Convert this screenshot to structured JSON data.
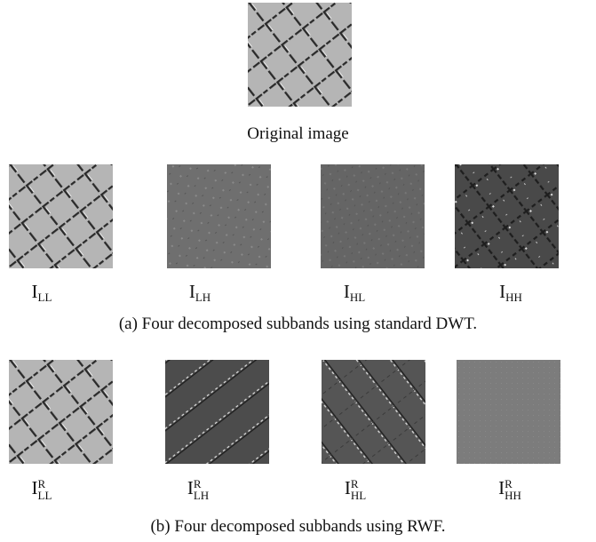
{
  "original": {
    "caption": "Original image"
  },
  "rows": [
    {
      "labels": [
        {
          "base": "I",
          "sub": "LL"
        },
        {
          "base": "I",
          "sub": "LH"
        },
        {
          "base": "I",
          "sub": "HL"
        },
        {
          "base": "I",
          "sub": "HH"
        }
      ],
      "caption": "(a) Four decomposed subbands using standard DWT."
    },
    {
      "labels": [
        {
          "base": "I",
          "sub": "LL",
          "sup": "R"
        },
        {
          "base": "I",
          "sub": "LH",
          "sup": "R"
        },
        {
          "base": "I",
          "sub": "HL",
          "sup": "R"
        },
        {
          "base": "I",
          "sub": "HH",
          "sup": "R"
        }
      ],
      "caption": "(b) Four decomposed subbands using RWF."
    }
  ]
}
